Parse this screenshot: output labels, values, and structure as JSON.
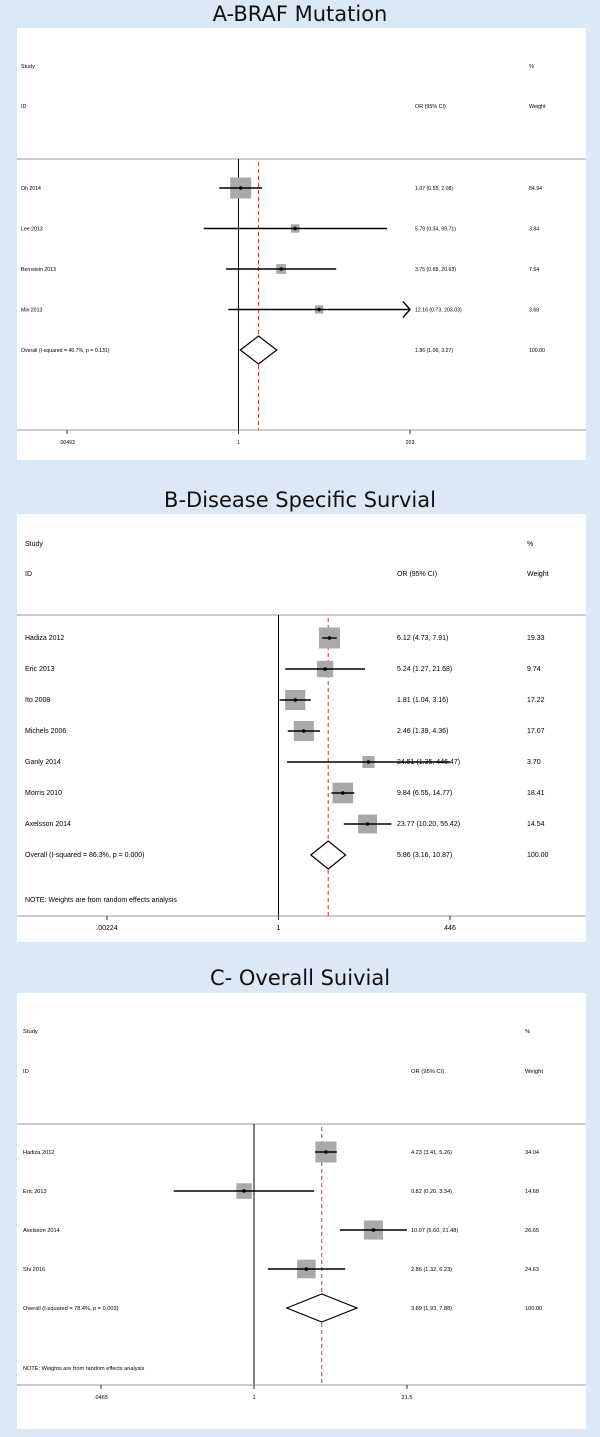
{
  "chart_data": [
    {
      "type": "forest",
      "title": "A-BRAF Mutation",
      "header": {
        "study": "Study",
        "id": "ID",
        "or_label": "OR (95% CI)",
        "pct": "%",
        "weight": "Weight"
      },
      "axis": {
        "ticks": [
          ".00493",
          "1",
          "203"
        ],
        "tick_values": [
          0.00493,
          1,
          203
        ],
        "log_range": [
          0.00493,
          203
        ]
      },
      "reference_value": 1,
      "overall_value": 1.86,
      "studies": [
        {
          "name": "Oh 2014",
          "or": 1.07,
          "lo": 0.55,
          "hi": 2.08,
          "ci_text": "1.07 (0.55, 2.08)",
          "weight": "84.94",
          "w": 84.94
        },
        {
          "name": "Lee 2013",
          "or": 5.79,
          "lo": 0.34,
          "hi": 99.71,
          "ci_text": "5.79 (0.34, 99.71)",
          "weight": "3.84",
          "w": 3.84
        },
        {
          "name": "Bernstein 2013",
          "or": 3.75,
          "lo": 0.68,
          "hi": 20.63,
          "ci_text": "3.75 (0.68, 20.63)",
          "weight": "7.54",
          "w": 7.54
        },
        {
          "name": "Min 2013",
          "or": 12.16,
          "lo": 0.73,
          "hi": 203.0,
          "ci_text": "12.16 (0.73, 203.03)",
          "weight": "3.68",
          "w": 3.68,
          "arrow": true
        }
      ],
      "overall": {
        "label": "Overall  (I-squared = 46.7%, p = 0.131)",
        "or": 1.86,
        "lo": 1.06,
        "hi": 3.27,
        "ci_text": "1.86 (1.06, 3.27)",
        "weight": "100.00"
      },
      "note": ""
    },
    {
      "type": "forest",
      "title": "B-Disease Specific Survial",
      "header": {
        "study": "Study",
        "id": "ID",
        "or_label": "OR (95% CI)",
        "pct": "%",
        "weight": "Weight"
      },
      "axis": {
        "ticks": [
          ".00224",
          "1",
          "446"
        ],
        "tick_values": [
          0.00224,
          1,
          446
        ],
        "log_range": [
          0.00224,
          446
        ]
      },
      "reference_value": 1,
      "overall_value": 5.86,
      "studies": [
        {
          "name": "Hadiza 2012",
          "or": 6.12,
          "lo": 4.73,
          "hi": 7.91,
          "ci_text": "6.12 (4.73, 7.91)",
          "weight": "19.33",
          "w": 19.33
        },
        {
          "name": "Eric 2013",
          "or": 5.24,
          "lo": 1.27,
          "hi": 21.68,
          "ci_text": "5.24 (1.27, 21.68)",
          "weight": "9.74",
          "w": 9.74
        },
        {
          "name": "Ito 2008",
          "or": 1.81,
          "lo": 1.04,
          "hi": 3.16,
          "ci_text": "1.81 (1.04, 3.16)",
          "weight": "17.22",
          "w": 17.22
        },
        {
          "name": "Michels 2006",
          "or": 2.46,
          "lo": 1.39,
          "hi": 4.36,
          "ci_text": "2.46 (1.39, 4.36)",
          "weight": "17.07",
          "w": 17.07
        },
        {
          "name": "Ganly 2014",
          "or": 24.51,
          "lo": 1.35,
          "hi": 446.47,
          "ci_text": "24.51 (1.35, 446.47)",
          "weight": "3.70",
          "w": 3.7
        },
        {
          "name": "Morris 2010",
          "or": 9.84,
          "lo": 6.55,
          "hi": 14.77,
          "ci_text": "9.84 (6.55, 14.77)",
          "weight": "18.41",
          "w": 18.41
        },
        {
          "name": "Axelsson 2014",
          "or": 23.77,
          "lo": 10.2,
          "hi": 55.42,
          "ci_text": "23.77 (10.20, 55.42)",
          "weight": "14.54",
          "w": 14.54
        }
      ],
      "overall": {
        "label": "Overall  (I-squared = 86.3%, p = 0.000)",
        "or": 5.86,
        "lo": 3.16,
        "hi": 10.87,
        "ci_text": "5.86 (3.16, 10.87)",
        "weight": "100.00"
      },
      "note": "NOTE: Weights are from random effects analysis"
    },
    {
      "type": "forest",
      "title": "C- Overall Suivial",
      "header": {
        "study": "Study",
        "id": "ID",
        "or_label": "OR (95% CI)",
        "pct": "%",
        "weight": "Weight"
      },
      "axis": {
        "ticks": [
          ".0465",
          "1",
          "21.5"
        ],
        "tick_values": [
          0.0465,
          1,
          21.5
        ],
        "log_range": [
          0.0465,
          21.5
        ]
      },
      "reference_value": 1,
      "overall_value": 3.89,
      "studies": [
        {
          "name": "Hadiza 2012",
          "or": 4.23,
          "lo": 3.41,
          "hi": 5.26,
          "ci_text": "4.23 (3.41, 5.26)",
          "weight": "34.04",
          "w": 34.04
        },
        {
          "name": "Eric 2013",
          "or": 0.82,
          "lo": 0.2,
          "hi": 3.34,
          "ci_text": "0.82 (0.20, 3.34)",
          "weight": "14.68",
          "w": 14.68
        },
        {
          "name": "Axelsson 2014",
          "or": 10.97,
          "lo": 5.6,
          "hi": 21.48,
          "ci_text": "10.97 (5.60, 21.48)",
          "weight": "26.65",
          "w": 26.65
        },
        {
          "name": "Shi 2016",
          "or": 2.86,
          "lo": 1.32,
          "hi": 6.23,
          "ci_text": "2.86 (1.32, 6.23)",
          "weight": "24.63",
          "w": 24.63
        }
      ],
      "overall": {
        "label": "Overall  (I-squared = 78.4%, p = 0.003)",
        "or": 3.89,
        "lo": 1.93,
        "hi": 7.88,
        "ci_text": "3.89 (1.93, 7.88)",
        "weight": "100.00"
      },
      "note": "NOTE: Weights are from random effects analysis"
    }
  ],
  "colors": {
    "reference_line": "#000000",
    "overall_line": "#c0392b",
    "box": "#a9a9a9",
    "background": "#dbe8f6"
  }
}
